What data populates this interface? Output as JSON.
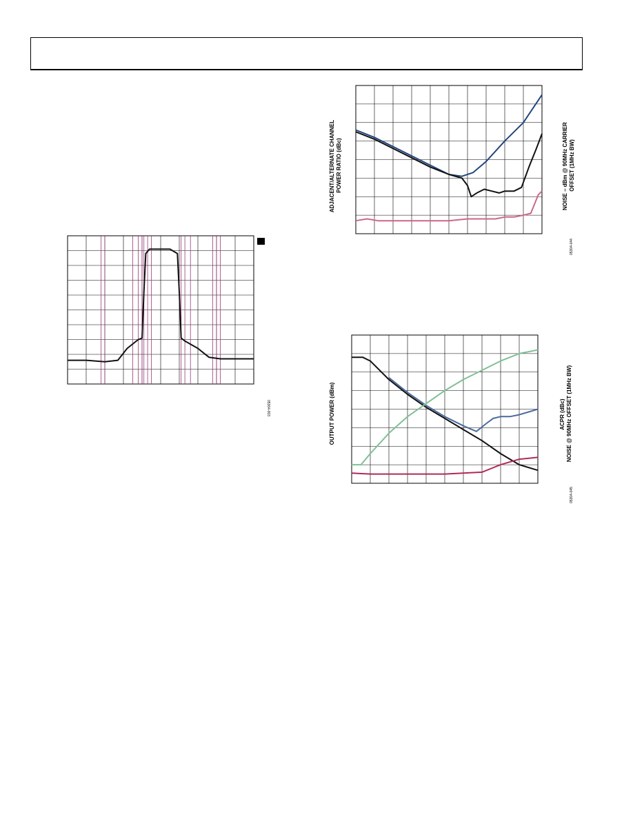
{
  "page": {
    "figure_codes": [
      "05304-003",
      "05304-044",
      "05304-045"
    ]
  },
  "chart_data": [
    {
      "type": "line",
      "title": "",
      "xlabel": "",
      "ylabel": "",
      "grid": true,
      "xlim": [
        0,
        10
      ],
      "ylim": [
        0,
        10
      ],
      "series": [
        {
          "color": "#111111",
          "x": [
            0,
            1,
            2,
            2.7,
            3.2,
            3.8,
            4.0,
            4.1,
            4.2,
            4.4,
            5.5,
            5.9,
            6.0,
            6.1,
            6.3,
            7.0,
            7.6,
            8.2,
            9.0,
            10
          ],
          "y": [
            1.6,
            1.6,
            1.5,
            1.6,
            2.4,
            3.0,
            3.1,
            6.2,
            8.8,
            9.1,
            9.1,
            8.8,
            6.2,
            3.1,
            2.9,
            2.4,
            1.8,
            1.7,
            1.7,
            1.7
          ]
        }
      ]
    },
    {
      "type": "line",
      "title": "",
      "xlabel": "",
      "ylabel": "ADJACENT/ALTERNATE CHANNEL\nPOWER RATIO (dBc)",
      "y2label": "NOISE – dBm @ 90MHz CARRIER\nOFFSET (1MHz BW)",
      "grid": true,
      "xlim": [
        0,
        10
      ],
      "ylim": [
        0,
        8
      ],
      "series": [
        {
          "color": "#22457f",
          "x": [
            0,
            1,
            2,
            3,
            4,
            5,
            5.7,
            6.3,
            7.0,
            8.0,
            9.0,
            10
          ],
          "y": [
            5.6,
            5.2,
            4.7,
            4.2,
            3.7,
            3.2,
            3.1,
            3.3,
            3.9,
            5.0,
            6.0,
            7.5
          ]
        },
        {
          "color": "#111111",
          "x": [
            0,
            1,
            2,
            3,
            4,
            5,
            5.7,
            6.0,
            6.2,
            6.5,
            6.9,
            7.3,
            7.7,
            8.0,
            8.5,
            8.9,
            9.3,
            9.7,
            10
          ],
          "y": [
            5.5,
            5.1,
            4.6,
            4.1,
            3.6,
            3.2,
            3.0,
            2.6,
            2.0,
            2.2,
            2.4,
            2.3,
            2.2,
            2.3,
            2.3,
            2.5,
            3.6,
            4.6,
            5.4
          ]
        },
        {
          "color": "#cc6688",
          "x": [
            0,
            0.6,
            1.2,
            2.0,
            3.0,
            4.0,
            5.0,
            6.0,
            6.5,
            7.0,
            7.5,
            8.0,
            8.5,
            9.0,
            9.4,
            9.6,
            9.8,
            10
          ],
          "y": [
            0.7,
            0.8,
            0.7,
            0.7,
            0.7,
            0.7,
            0.7,
            0.8,
            0.8,
            0.8,
            0.8,
            0.9,
            0.9,
            1.0,
            1.1,
            1.6,
            2.1,
            2.3
          ]
        }
      ]
    },
    {
      "type": "line",
      "title": "",
      "xlabel": "",
      "ylabel": "OUTPUT POWER (dBm)",
      "y2label": "ACPR (dBc)\nNOISE @ 90MHz OFFSET (1MHz BW)",
      "grid": true,
      "xlim": [
        0,
        10
      ],
      "ylim": [
        0,
        8
      ],
      "series": [
        {
          "color": "#111111",
          "x": [
            0,
            0.6,
            1.0,
            2.0,
            3.0,
            4.0,
            5.0,
            6.0,
            7.0,
            8.0,
            9.0,
            10
          ],
          "y": [
            6.8,
            6.8,
            6.6,
            5.6,
            4.8,
            4.1,
            3.5,
            2.9,
            2.3,
            1.6,
            1.0,
            0.7
          ]
        },
        {
          "color": "#4a6a9c",
          "x": [
            2.0,
            3.0,
            4.0,
            5.0,
            6.0,
            6.7,
            7.2,
            7.6,
            8.0,
            8.5,
            9.0,
            10
          ],
          "y": [
            5.7,
            4.9,
            4.2,
            3.6,
            3.1,
            2.8,
            3.2,
            3.5,
            3.6,
            3.6,
            3.7,
            4.0
          ]
        },
        {
          "color": "#7fbf95",
          "x": [
            0,
            0.5,
            1.0,
            2.0,
            3.0,
            4.0,
            5.0,
            6.0,
            7.0,
            8.0,
            9.0,
            10
          ],
          "y": [
            1.0,
            1.0,
            1.6,
            2.7,
            3.6,
            4.3,
            5.0,
            5.6,
            6.1,
            6.6,
            7.0,
            7.2
          ]
        },
        {
          "color": "#b0285a",
          "x": [
            0,
            1,
            2,
            3,
            4,
            5,
            6,
            7,
            7.5,
            8,
            9,
            10
          ],
          "y": [
            0.55,
            0.5,
            0.5,
            0.5,
            0.5,
            0.5,
            0.55,
            0.6,
            0.8,
            1.0,
            1.3,
            1.4
          ]
        }
      ]
    }
  ]
}
